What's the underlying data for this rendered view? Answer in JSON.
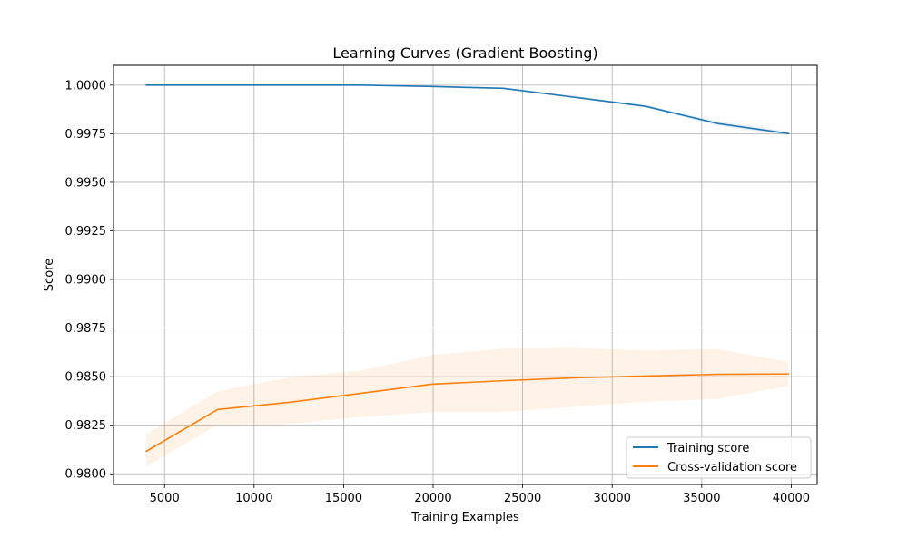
{
  "chart_data": {
    "type": "line",
    "title": "Learning Curves (Gradient Boosting)",
    "xlabel": "Training Examples",
    "ylabel": "Score",
    "xlim": [
      2150,
      41450
    ],
    "ylim": [
      0.97945,
      1.00102
    ],
    "xticks": [
      5000,
      10000,
      15000,
      20000,
      25000,
      30000,
      35000,
      40000
    ],
    "xtick_labels": [
      "5000",
      "10000",
      "15000",
      "20000",
      "25000",
      "30000",
      "35000",
      "40000"
    ],
    "yticks": [
      0.98,
      0.9825,
      0.985,
      0.9875,
      0.99,
      0.9925,
      0.995,
      0.9975,
      1.0
    ],
    "ytick_labels": [
      "0.9800",
      "0.9825",
      "0.9850",
      "0.9875",
      "0.9900",
      "0.9925",
      "0.9950",
      "0.9975",
      "1.0000"
    ],
    "grid": true,
    "legend_position": "bottom-right",
    "series": [
      {
        "name": "Training score",
        "color": "#1f77b4",
        "fill_color": "#1f77b4",
        "x": [
          3985,
          7970,
          11955,
          15940,
          19925,
          23910,
          27895,
          31880,
          35865,
          39850
        ],
        "y": [
          1.0,
          1.0,
          1.0,
          1.0,
          0.99993,
          0.99984,
          0.99938,
          0.99891,
          0.99803,
          0.99751
        ],
        "y_upper": [
          1.0,
          1.0,
          1.0,
          1.0,
          0.99996,
          0.99988,
          0.99944,
          0.99897,
          0.99815,
          0.99762
        ],
        "y_lower": [
          1.0,
          1.0,
          1.0,
          1.0,
          0.9999,
          0.9998,
          0.99932,
          0.99885,
          0.99791,
          0.9974
        ]
      },
      {
        "name": "Cross-validation score",
        "color": "#ff7f0e",
        "fill_color": "#ff7f0e",
        "x": [
          3985,
          7970,
          11955,
          15940,
          19925,
          23910,
          27895,
          31880,
          35865,
          39850
        ],
        "y": [
          0.98116,
          0.98331,
          0.98368,
          0.98414,
          0.98461,
          0.98479,
          0.98494,
          0.98503,
          0.98512,
          0.98514
        ],
        "y_upper": [
          0.98205,
          0.98425,
          0.98496,
          0.98531,
          0.98611,
          0.98644,
          0.98648,
          0.98634,
          0.98642,
          0.98575
        ],
        "y_lower": [
          0.98037,
          0.98253,
          0.98256,
          0.98292,
          0.98318,
          0.98318,
          0.98345,
          0.98371,
          0.98385,
          0.98452
        ]
      }
    ]
  }
}
